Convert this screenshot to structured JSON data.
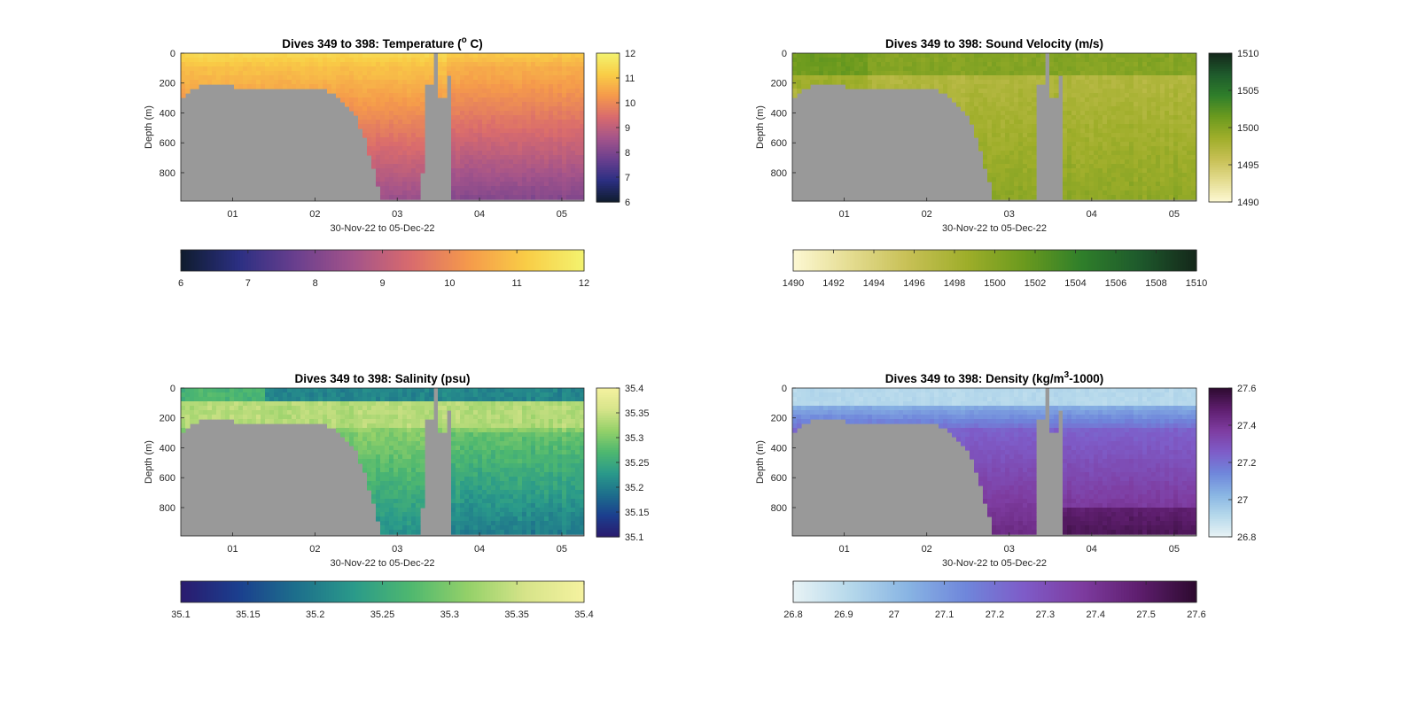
{
  "figure": {
    "background": "#ffffff",
    "panel_background": "#999999",
    "axis_color": "#262626"
  },
  "chart_data": [
    {
      "type": "heatmap",
      "title_main": "Dives 349 to 398: Temperature (",
      "title_sup": "o",
      "title_tail": " C)",
      "xlabel": "30-Nov-22 to 05-Dec-22",
      "ylabel": "Depth (m)",
      "x": {
        "range": [
          30.37,
          35.27
        ],
        "ticks": [
          31,
          32,
          33,
          34,
          35
        ],
        "tick_labels": [
          "01",
          "02",
          "03",
          "04",
          "05"
        ]
      },
      "y": {
        "range": [
          0,
          990
        ],
        "ticks": [
          0,
          200,
          400,
          600,
          800
        ],
        "tick_labels": [
          "0",
          "200",
          "400",
          "600",
          "800"
        ],
        "reversed": true
      },
      "max_dive_depth": [
        [
          30.37,
          310
        ],
        [
          30.45,
          270
        ],
        [
          30.55,
          230
        ],
        [
          30.65,
          210
        ],
        [
          30.8,
          215
        ],
        [
          30.95,
          220
        ],
        [
          31.1,
          225
        ],
        [
          31.3,
          240
        ],
        [
          31.5,
          250
        ],
        [
          31.7,
          250
        ],
        [
          31.8,
          240
        ],
        [
          31.95,
          235
        ],
        [
          32.1,
          240
        ],
        [
          32.2,
          260
        ],
        [
          32.3,
          300
        ],
        [
          32.4,
          350
        ],
        [
          32.5,
          420
        ],
        [
          32.58,
          530
        ],
        [
          32.65,
          650
        ],
        [
          32.72,
          800
        ],
        [
          32.78,
          900
        ],
        [
          32.82,
          985
        ],
        [
          33.3,
          985
        ],
        [
          33.32,
          200
        ],
        [
          33.42,
          200
        ],
        [
          33.43,
          0
        ],
        [
          33.5,
          0
        ],
        [
          33.51,
          300
        ],
        [
          33.58,
          300
        ],
        [
          33.59,
          150
        ],
        [
          33.65,
          150
        ],
        [
          33.67,
          985
        ],
        [
          35.27,
          985
        ]
      ],
      "colorscale": [
        "#0f1c2d",
        "#2b2f82",
        "#6a3f8e",
        "#a4548a",
        "#d96b6d",
        "#f59a4b",
        "#f9cd46",
        "#f3f36f"
      ],
      "colorbar": {
        "range": [
          6,
          12
        ],
        "v_ticks": [
          6,
          7,
          8,
          9,
          10,
          11,
          12
        ],
        "v_tick_labels": [
          "6",
          "7",
          "8",
          "9",
          "10",
          "11",
          "12"
        ],
        "h_ticks": [
          6,
          7,
          8,
          9,
          10,
          11,
          12
        ],
        "h_tick_labels": [
          "6",
          "7",
          "8",
          "9",
          "10",
          "11",
          "12"
        ]
      }
    },
    {
      "type": "heatmap",
      "title_main": "Dives 349 to 398: Sound Velocity (m/s)",
      "title_sup": "",
      "title_tail": "",
      "xlabel": "30-Nov-22 to 05-Dec-22",
      "ylabel": "Depth (m)",
      "x": {
        "range": [
          30.37,
          35.27
        ],
        "ticks": [
          31,
          32,
          33,
          34,
          35
        ],
        "tick_labels": [
          "01",
          "02",
          "03",
          "04",
          "05"
        ]
      },
      "y": {
        "range": [
          0,
          990
        ],
        "ticks": [
          0,
          200,
          400,
          600,
          800
        ],
        "tick_labels": [
          "0",
          "200",
          "400",
          "600",
          "800"
        ],
        "reversed": true
      },
      "max_dive_depth": [
        [
          30.37,
          310
        ],
        [
          30.45,
          270
        ],
        [
          30.55,
          230
        ],
        [
          30.65,
          210
        ],
        [
          30.8,
          215
        ],
        [
          30.95,
          220
        ],
        [
          31.1,
          225
        ],
        [
          31.3,
          240
        ],
        [
          31.5,
          250
        ],
        [
          31.7,
          250
        ],
        [
          31.8,
          240
        ],
        [
          31.95,
          235
        ],
        [
          32.1,
          240
        ],
        [
          32.2,
          260
        ],
        [
          32.3,
          300
        ],
        [
          32.4,
          350
        ],
        [
          32.5,
          420
        ],
        [
          32.58,
          530
        ],
        [
          32.65,
          650
        ],
        [
          32.72,
          800
        ],
        [
          32.78,
          900
        ],
        [
          32.82,
          985
        ],
        [
          33.3,
          985
        ],
        [
          33.32,
          200
        ],
        [
          33.42,
          200
        ],
        [
          33.43,
          0
        ],
        [
          33.5,
          0
        ],
        [
          33.51,
          300
        ],
        [
          33.58,
          300
        ],
        [
          33.59,
          150
        ],
        [
          33.65,
          150
        ],
        [
          33.67,
          985
        ],
        [
          35.27,
          985
        ]
      ],
      "colorscale": [
        "#fdf8d3",
        "#e4dc90",
        "#c7c055",
        "#9fae2a",
        "#6b9a1e",
        "#2f7f2a",
        "#1e5a2c",
        "#14271a"
      ],
      "colorbar": {
        "range": [
          1490,
          1510
        ],
        "v_ticks": [
          1490,
          1495,
          1500,
          1505,
          1510
        ],
        "v_tick_labels": [
          "1490",
          "1495",
          "1500",
          "1505",
          "1510"
        ],
        "h_ticks": [
          1490,
          1492,
          1494,
          1496,
          1498,
          1500,
          1502,
          1504,
          1506,
          1508,
          1510
        ],
        "h_tick_labels": [
          "1490",
          "1492",
          "1494",
          "1496",
          "1498",
          "1500",
          "1502",
          "1504",
          "1506",
          "1508",
          "1510"
        ]
      }
    },
    {
      "type": "heatmap",
      "title_main": "Dives 349 to 398: Salinity (psu)",
      "title_sup": "",
      "title_tail": "",
      "xlabel": "30-Nov-22 to 05-Dec-22",
      "ylabel": "Depth (m)",
      "x": {
        "range": [
          30.37,
          35.27
        ],
        "ticks": [
          31,
          32,
          33,
          34,
          35
        ],
        "tick_labels": [
          "01",
          "02",
          "03",
          "04",
          "05"
        ]
      },
      "y": {
        "range": [
          0,
          990
        ],
        "ticks": [
          0,
          200,
          400,
          600,
          800
        ],
        "tick_labels": [
          "0",
          "200",
          "400",
          "600",
          "800"
        ],
        "reversed": true
      },
      "max_dive_depth": [
        [
          30.37,
          310
        ],
        [
          30.45,
          270
        ],
        [
          30.55,
          230
        ],
        [
          30.65,
          210
        ],
        [
          30.8,
          215
        ],
        [
          30.95,
          220
        ],
        [
          31.1,
          225
        ],
        [
          31.3,
          240
        ],
        [
          31.5,
          250
        ],
        [
          31.7,
          250
        ],
        [
          31.8,
          240
        ],
        [
          31.95,
          235
        ],
        [
          32.1,
          240
        ],
        [
          32.2,
          260
        ],
        [
          32.3,
          300
        ],
        [
          32.4,
          350
        ],
        [
          32.5,
          420
        ],
        [
          32.58,
          530
        ],
        [
          32.65,
          650
        ],
        [
          32.72,
          800
        ],
        [
          32.78,
          900
        ],
        [
          32.82,
          985
        ],
        [
          33.3,
          985
        ],
        [
          33.32,
          200
        ],
        [
          33.42,
          200
        ],
        [
          33.43,
          0
        ],
        [
          33.5,
          0
        ],
        [
          33.51,
          300
        ],
        [
          33.58,
          300
        ],
        [
          33.59,
          150
        ],
        [
          33.65,
          150
        ],
        [
          33.67,
          985
        ],
        [
          35.27,
          985
        ]
      ],
      "colorscale": [
        "#2a1a6e",
        "#1b3f8e",
        "#1d6f8c",
        "#2a9a8a",
        "#4fb86f",
        "#95d169",
        "#d7e48a",
        "#f5f2a0"
      ],
      "colorbar": {
        "range": [
          35.1,
          35.4
        ],
        "v_ticks": [
          35.1,
          35.15,
          35.2,
          35.25,
          35.3,
          35.35,
          35.4
        ],
        "v_tick_labels": [
          "35.1",
          "35.15",
          "35.2",
          "35.25",
          "35.3",
          "35.35",
          "35.4"
        ],
        "h_ticks": [
          35.1,
          35.15,
          35.2,
          35.25,
          35.3,
          35.35,
          35.4
        ],
        "h_tick_labels": [
          "35.1",
          "35.15",
          "35.2",
          "35.25",
          "35.3",
          "35.35",
          "35.4"
        ]
      }
    },
    {
      "type": "heatmap",
      "title_main": "Dives 349 to 398: Density (kg/m",
      "title_sup": "3",
      "title_tail": "-1000)",
      "xlabel": "30-Nov-22 to 05-Dec-22",
      "ylabel": "Depth (m)",
      "x": {
        "range": [
          30.37,
          35.27
        ],
        "ticks": [
          31,
          32,
          33,
          34,
          35
        ],
        "tick_labels": [
          "01",
          "02",
          "03",
          "04",
          "05"
        ]
      },
      "y": {
        "range": [
          0,
          990
        ],
        "ticks": [
          0,
          200,
          400,
          600,
          800
        ],
        "tick_labels": [
          "0",
          "200",
          "400",
          "600",
          "800"
        ],
        "reversed": true
      },
      "max_dive_depth": [
        [
          30.37,
          310
        ],
        [
          30.45,
          270
        ],
        [
          30.55,
          230
        ],
        [
          30.65,
          210
        ],
        [
          30.8,
          215
        ],
        [
          30.95,
          220
        ],
        [
          31.1,
          225
        ],
        [
          31.3,
          240
        ],
        [
          31.5,
          250
        ],
        [
          31.7,
          250
        ],
        [
          31.8,
          240
        ],
        [
          31.95,
          235
        ],
        [
          32.1,
          240
        ],
        [
          32.2,
          260
        ],
        [
          32.3,
          300
        ],
        [
          32.4,
          350
        ],
        [
          32.5,
          420
        ],
        [
          32.58,
          530
        ],
        [
          32.65,
          650
        ],
        [
          32.72,
          800
        ],
        [
          32.78,
          900
        ],
        [
          32.82,
          985
        ],
        [
          33.3,
          985
        ],
        [
          33.32,
          200
        ],
        [
          33.42,
          200
        ],
        [
          33.43,
          0
        ],
        [
          33.5,
          0
        ],
        [
          33.51,
          300
        ],
        [
          33.58,
          300
        ],
        [
          33.59,
          150
        ],
        [
          33.65,
          150
        ],
        [
          33.67,
          985
        ],
        [
          35.27,
          985
        ]
      ],
      "colorscale": [
        "#e8f3f5",
        "#b5d8eb",
        "#88b4e3",
        "#6f86db",
        "#7e5cc8",
        "#7e3ca0",
        "#5e1e6e",
        "#2d0a2f"
      ],
      "colorbar": {
        "range": [
          26.8,
          27.6
        ],
        "v_ticks": [
          26.8,
          27.0,
          27.2,
          27.4,
          27.6
        ],
        "v_tick_labels": [
          "26.8",
          "27",
          "27.2",
          "27.4",
          "27.6"
        ],
        "h_ticks": [
          26.8,
          26.9,
          27.0,
          27.1,
          27.2,
          27.3,
          27.4,
          27.5,
          27.6
        ],
        "h_tick_labels": [
          "26.8",
          "26.9",
          "27",
          "27.1",
          "27.2",
          "27.3",
          "27.4",
          "27.5",
          "27.6"
        ]
      }
    }
  ]
}
